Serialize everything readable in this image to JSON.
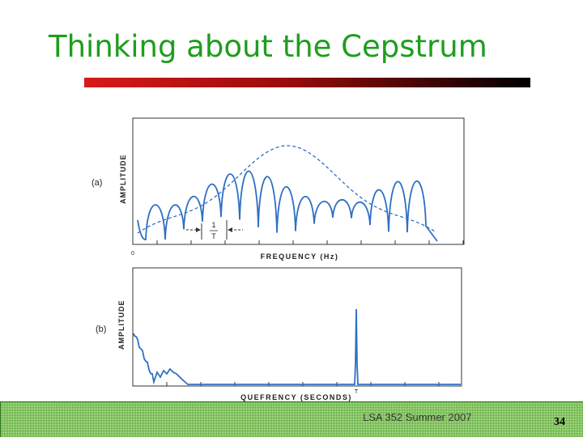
{
  "slide": {
    "title": "Thinking about the Cepstrum",
    "footer": "LSA 352 Summer 2007",
    "page_number": "34"
  },
  "figure": {
    "panel_a": {
      "tag": "(a)",
      "ylabel": "AMPLITUDE",
      "xlabel": "FREQUENCY (Hz)",
      "origin_label": "0",
      "spacing_label_top": "1",
      "spacing_label_bottom": "T"
    },
    "panel_b": {
      "tag": "(b)",
      "ylabel": "AMPLITUDE",
      "xlabel": "QUEFRENCY (SECONDS)",
      "peak_label": "T"
    },
    "line_color": "#2f6fc4",
    "accent_colors": {
      "title": "#1e9e1e",
      "rule_start": "#d81a1a",
      "rule_end": "#000000",
      "footer_band": "#ccefa0"
    }
  }
}
